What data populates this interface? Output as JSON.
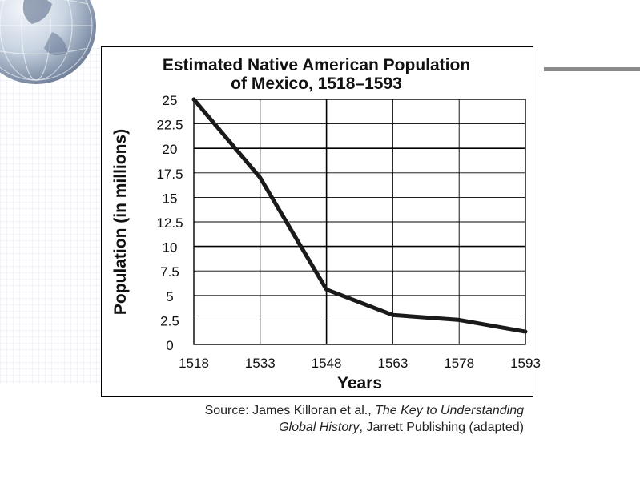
{
  "chart_data": {
    "type": "line",
    "title_line1": "Estimated Native American Population",
    "title_line2": "of Mexico, 1518–1593",
    "xlabel": "Years",
    "ylabel": "Population (in millions)",
    "x": [
      1518,
      1533,
      1548,
      1563,
      1578,
      1593
    ],
    "series": [
      {
        "values": [
          25,
          17,
          5.6,
          3,
          2.5,
          1.3
        ]
      }
    ],
    "xlim": [
      1518,
      1593
    ],
    "ylim": [
      0,
      25
    ],
    "x_ticks": [
      "1518",
      "1533",
      "1548",
      "1563",
      "1578",
      "1593"
    ],
    "y_ticks": [
      "0",
      "2.5",
      "5",
      "7.5",
      "10",
      "12.5",
      "15",
      "17.5",
      "20",
      "22.5",
      "25"
    ],
    "grid": true,
    "line_color": "#1a1a1a"
  },
  "source": {
    "prefix": "Source: James Killoran et al., ",
    "italic1": "The Key to Understanding",
    "italic2": "Global History",
    "suffix": ", Jarrett Publishing (adapted)"
  }
}
